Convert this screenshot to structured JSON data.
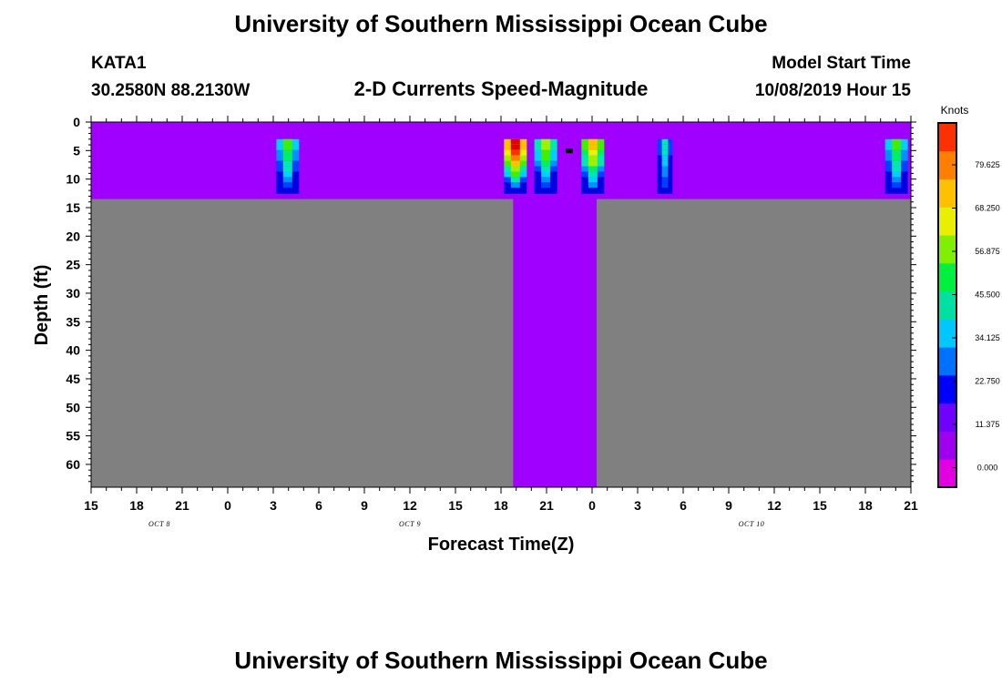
{
  "header": {
    "title": "University of Southern Mississippi Ocean Cube",
    "station": "KATA1",
    "coords": "30.2580N 88.2130W",
    "product": "2-D Currents Speed-Magnitude",
    "model_start_label": "Model Start Time",
    "model_start_value": "10/08/2019 Hour 15"
  },
  "footer": {
    "title": "University of Southern Mississippi Ocean Cube"
  },
  "chart_data": {
    "type": "heatmap",
    "xlabel": "Forecast Time(Z)",
    "ylabel": "Depth (ft)",
    "x_unit": "hours since model start (10/08/2019 15Z)",
    "xlim": [
      0,
      54
    ],
    "ylim": [
      0,
      64
    ],
    "y_reversed": true,
    "x_ticks": [
      "15",
      "18",
      "21",
      "0",
      "3",
      "6",
      "9",
      "12",
      "15",
      "18",
      "21",
      "0",
      "3",
      "6",
      "9",
      "12",
      "15",
      "18",
      "21"
    ],
    "x_tick_step_hours": 3,
    "day_labels": [
      {
        "text": "OCT 8",
        "hour": 4.5
      },
      {
        "text": "OCT 9",
        "hour": 21
      },
      {
        "text": "OCT 10",
        "hour": 43.5
      }
    ],
    "y_ticks": [
      0,
      5,
      10,
      15,
      20,
      25,
      30,
      35,
      40,
      45,
      50,
      55,
      60
    ],
    "colorbar": {
      "unit": "Knots",
      "tick_values": [
        "79.625",
        "68.250",
        "56.875",
        "45.500",
        "34.125",
        "22.750",
        "11.375",
        "0.000"
      ],
      "colors": [
        "#e000e0",
        "#a000f0",
        "#7000ff",
        "#0000ff",
        "#0070ff",
        "#00c8ff",
        "#00e0a0",
        "#00f040",
        "#80f000",
        "#e8f000",
        "#ffc000",
        "#ff8000",
        "#ff3000"
      ]
    },
    "colors": {
      "background": "#a000ff",
      "no_data": "#808080"
    },
    "shallow_depth_ft": 13.5,
    "deep_column_hours": [
      27.8,
      33.3
    ],
    "no_data_regions": [
      {
        "x": [
          0,
          27.8
        ],
        "y": [
          13.5,
          64
        ]
      },
      {
        "x": [
          33.3,
          54
        ],
        "y": [
          13.5,
          64
        ]
      }
    ],
    "speed_columns": [
      {
        "x": [
          12.2,
          13.7
        ],
        "top": 3,
        "bottom": 12.5,
        "peak": 6
      },
      {
        "x": [
          27.2,
          28.7
        ],
        "top": 3,
        "bottom": 12.5,
        "peak": 12
      },
      {
        "x": [
          29.2,
          30.7
        ],
        "top": 3,
        "bottom": 12.5,
        "peak": 7
      },
      {
        "x": [
          32.3,
          33.8
        ],
        "top": 3,
        "bottom": 12.5,
        "peak": 9
      },
      {
        "x": [
          37.3,
          38.3
        ],
        "top": 3,
        "bottom": 12.5,
        "peak": 4
      },
      {
        "x": [
          52.3,
          53.8
        ],
        "top": 3,
        "bottom": 12.5,
        "peak": 6
      }
    ],
    "marker": {
      "x": 31.5,
      "depth": 5
    }
  }
}
